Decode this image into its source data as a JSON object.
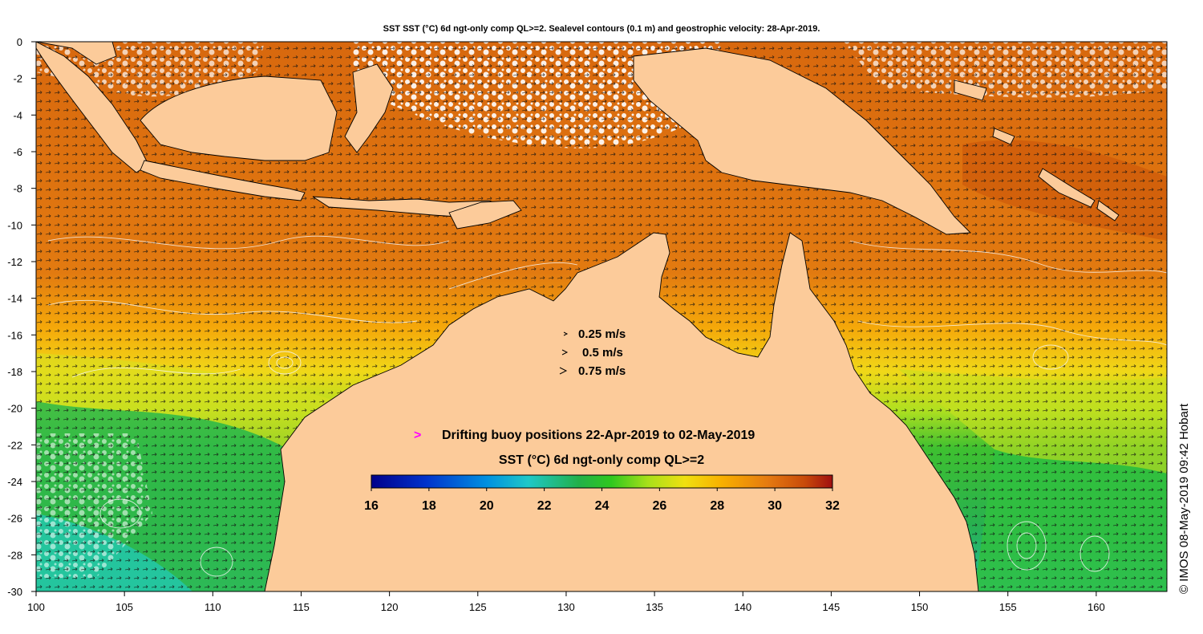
{
  "title": "SST SST (°C) 6d ngt-only comp QL>=2. Sealevel contours (0.1 m) and geostrophic velocity: 28-Apr-2019.",
  "axes": {
    "x_ticks": [
      "100",
      "105",
      "110",
      "115",
      "120",
      "125",
      "130",
      "135",
      "140",
      "145",
      "150",
      "155",
      "160"
    ],
    "y_ticks": [
      "0",
      "-2",
      "-4",
      "-6",
      "-8",
      "-10",
      "-12",
      "-14",
      "-16",
      "-18",
      "-20",
      "-22",
      "-24",
      "-26",
      "-28",
      "-30"
    ],
    "x_range": [
      100,
      164
    ],
    "y_range": [
      0,
      -30
    ]
  },
  "velocity_legend": [
    {
      "label": "0.25 m/s"
    },
    {
      "label": "0.5 m/s"
    },
    {
      "label": "0.75 m/s"
    }
  ],
  "buoy_legend": {
    "symbol": ">",
    "label": "Drifting buoy positions 22-Apr-2019 to 02-May-2019",
    "color": "#ff00ff"
  },
  "colorbar": {
    "title": "SST (°C) 6d ngt-only comp QL>=2",
    "ticks": [
      "16",
      "18",
      "20",
      "22",
      "24",
      "26",
      "28",
      "30",
      "32"
    ],
    "min": 16,
    "max": 32
  },
  "copyright": "© IMOS 08-May-2019 09:42 Hobart",
  "colors": {
    "land": "#fccb9a",
    "warm_sea": "#dd6e10",
    "mid_sea": "#f29a10",
    "yellow_sea": "#e6e21a",
    "green_sea": "#3cc02a",
    "cool_sea": "#20c89a",
    "cloud": "#ffffff"
  }
}
